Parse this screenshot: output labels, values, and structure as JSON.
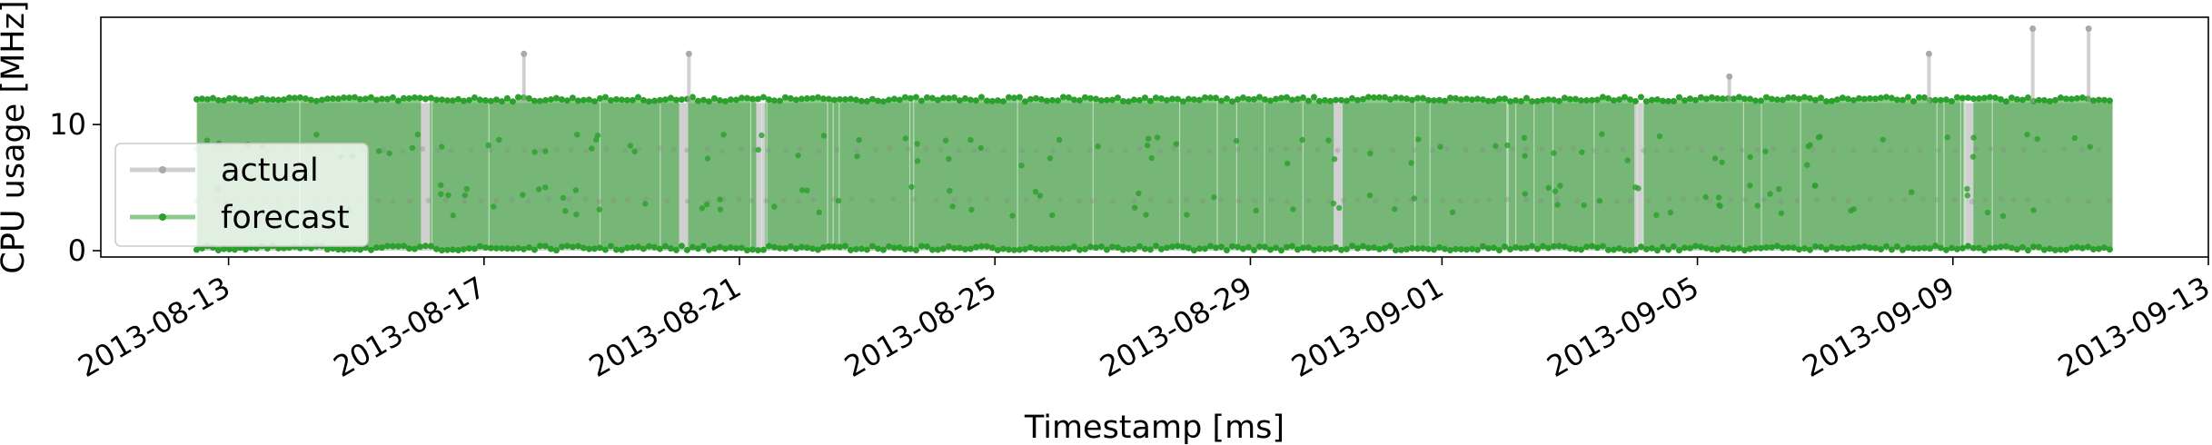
{
  "chart_data": {
    "type": "line",
    "title": "",
    "xlabel": "Timestamp [ms]",
    "ylabel": "CPU usage [MHz]",
    "ylim": [
      -0.5,
      18.5
    ],
    "xlim": [
      "2013-08-11",
      "2013-09-13"
    ],
    "x_ticks": [
      "2013-08-13",
      "2013-08-17",
      "2013-08-21",
      "2013-08-25",
      "2013-08-29",
      "2013-09-01",
      "2013-09-05",
      "2013-09-09",
      "2013-09-13"
    ],
    "y_ticks": [
      0,
      10
    ],
    "grid": false,
    "legend_position": "center-left",
    "series": [
      {
        "name": "actual",
        "color": "#a9a9a9",
        "x_range": [
          "2013-08-12T12:00",
          "2013-09-11T12:00"
        ],
        "levels": [
          0,
          4,
          8,
          11.7
        ],
        "spikes": [
          {
            "x": "2013-08-17T15:00",
            "y": 15.6
          },
          {
            "x": "2013-08-20T05:00",
            "y": 15.6
          },
          {
            "x": "2013-09-05T12:00",
            "y": 13.8
          },
          {
            "x": "2013-09-08T15:00",
            "y": 15.6
          },
          {
            "x": "2013-09-10T06:00",
            "y": 17.6
          },
          {
            "x": "2013-09-11T03:00",
            "y": 17.6
          }
        ]
      },
      {
        "name": "forecast",
        "color": "#2ca02c",
        "x_range": [
          "2013-08-12T12:00",
          "2013-09-11T12:00"
        ],
        "levels": [
          0.2,
          4,
          8,
          12
        ],
        "gaps": [
          "2013-08-16T02:00",
          "2013-08-20T03:00",
          "2013-08-21T08:00",
          "2013-08-30T09:00",
          "2013-09-04T02:00",
          "2013-09-09T06:00"
        ]
      }
    ]
  }
}
